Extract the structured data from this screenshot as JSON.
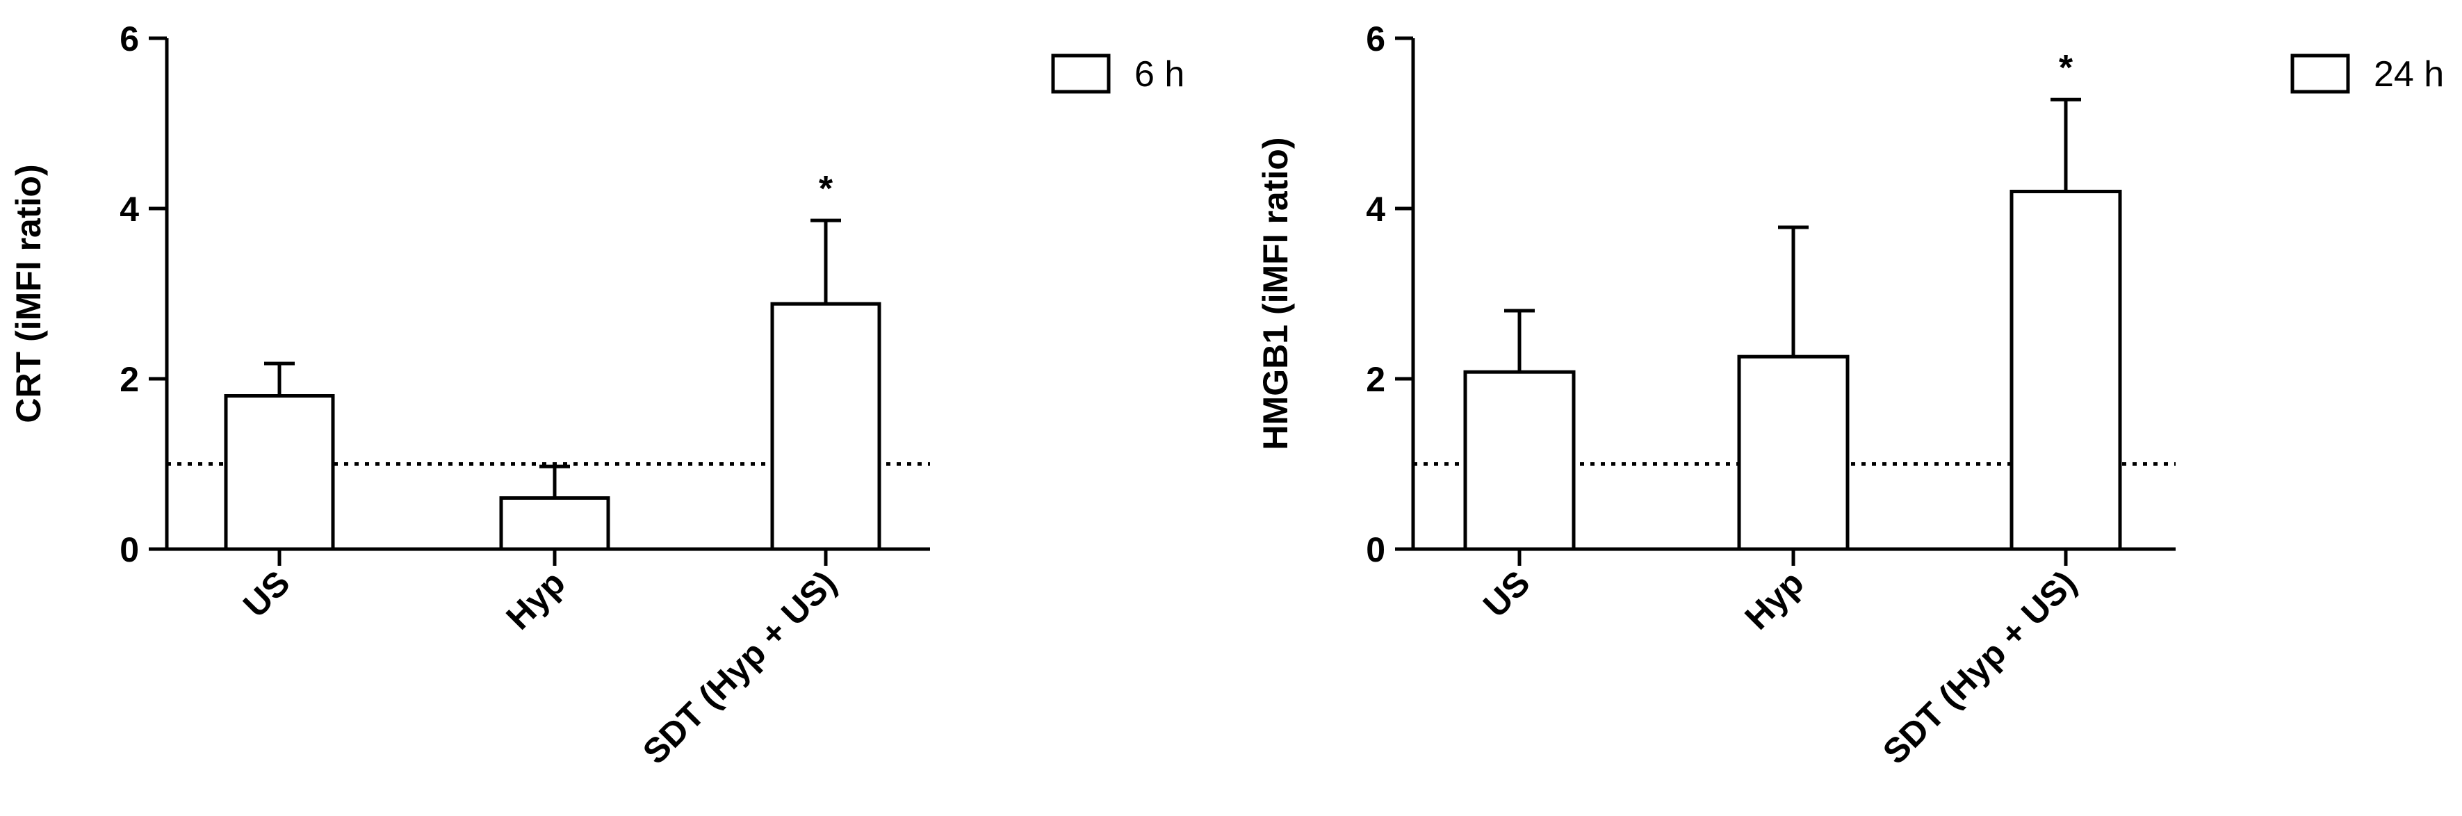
{
  "chart_data": [
    {
      "type": "bar",
      "ylabel": "CRT (iMFI ratio)",
      "ylim": [
        0,
        6
      ],
      "yticks": [
        0,
        2,
        4,
        6
      ],
      "reference_line": 1,
      "legend": {
        "label": "6 h",
        "position": "top-right"
      },
      "categories": [
        "US",
        "Hyp",
        "SDT (Hyp + US)"
      ],
      "series": [
        {
          "values": [
            1.8,
            0.6,
            2.88
          ],
          "error": [
            0.38,
            0.37,
            0.98
          ],
          "significance": [
            "",
            "",
            "*"
          ]
        }
      ]
    },
    {
      "type": "bar",
      "ylabel": "HMGB1 (iMFI ratio)",
      "ylim": [
        0,
        6
      ],
      "yticks": [
        0,
        2,
        4,
        6
      ],
      "reference_line": 1,
      "legend": {
        "label": "24 h",
        "position": "top-right"
      },
      "categories": [
        "US",
        "Hyp",
        "SDT (Hyp + US)"
      ],
      "series": [
        {
          "values": [
            2.08,
            2.26,
            4.2
          ],
          "error": [
            0.72,
            1.52,
            1.08
          ],
          "significance": [
            "",
            "",
            "*"
          ]
        }
      ]
    }
  ]
}
